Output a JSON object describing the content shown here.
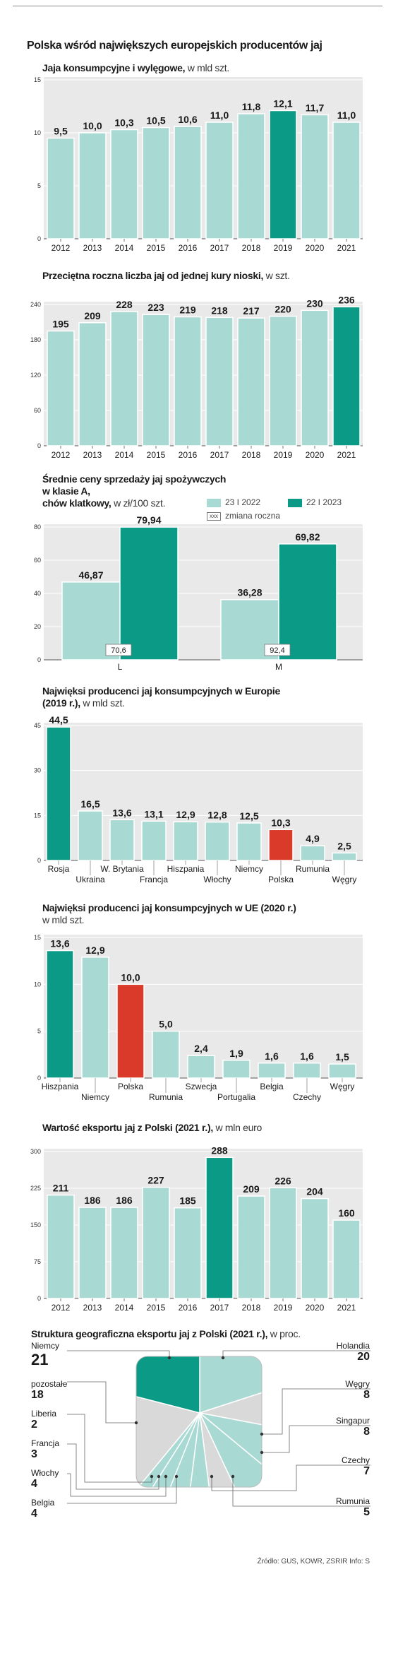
{
  "title": "Polska wśród największych europejskich producentów jaj",
  "colors": {
    "light": "#a8d9d3",
    "dark": "#0a9a86",
    "highlight": "#d93a2a",
    "panel": "#e9e9e9",
    "grey": "#cfcfcf"
  },
  "charts": {
    "c1": {
      "title": "Jaja konsumpcyjne i wylęgowe,",
      "unit": "w mld szt."
    },
    "c2": {
      "title": "Przeciętna roczna liczba jaj od jednej kury nioski,",
      "unit": "w szt."
    },
    "c3": {
      "title_line1": "Średnie ceny sprzedaży jaj spożywczych w klasie A,",
      "title_line2": "chów klatkowy,",
      "unit": "w zł/100 szt.",
      "legend": {
        "a": "23 I 2022",
        "b": "22 I 2023",
        "c_box": "xxx",
        "c": "zmiana roczna"
      }
    },
    "c4": {
      "title_line1": "Najwięksi producenci jaj konsumpcyjnych w Europie",
      "title_line2": "(2019 r.),",
      "unit": "w mld szt."
    },
    "c5": {
      "title": "Najwięksi producenci jaj konsumpcyjnych w UE (2020 r.)",
      "unit": "w mld szt."
    },
    "c6": {
      "title": "Wartość eksportu jaj z Polski (2021 r.),",
      "unit": "w mln euro"
    },
    "c7": {
      "title": "Struktura geograficzna eksportu jaj z Polski (2021 r.),",
      "unit": "w proc."
    }
  },
  "pie_labels": {
    "niemcy": {
      "name": "Niemcy",
      "val": "21"
    },
    "pozostale": {
      "name": "pozostałe",
      "val": "18"
    },
    "liberia": {
      "name": "Liberia",
      "val": "2"
    },
    "francja": {
      "name": "Francja",
      "val": "3"
    },
    "wlochy": {
      "name": "Włochy",
      "val": "4"
    },
    "belgia": {
      "name": "Belgia",
      "val": "4"
    },
    "holandia": {
      "name": "Holandia",
      "val": "20"
    },
    "wegry": {
      "name": "Węgry",
      "val": "8"
    },
    "singapur": {
      "name": "Singapur",
      "val": "8"
    },
    "czechy": {
      "name": "Czechy",
      "val": "7"
    },
    "rumunia": {
      "name": "Rumunia",
      "val": "5"
    }
  },
  "source": "Źródło: GUS, KOWR, ZSRIR   Info: S",
  "chart_data": [
    {
      "type": "bar",
      "id": "c1",
      "title": "Jaja konsumpcyjne i wylęgowe, w mld szt.",
      "categories": [
        "2012",
        "2013",
        "2014",
        "2015",
        "2016",
        "2017",
        "2018",
        "2019",
        "2020",
        "2021"
      ],
      "values": [
        9.5,
        10.0,
        10.3,
        10.5,
        10.6,
        11.0,
        11.8,
        12.1,
        11.7,
        11.0
      ],
      "labels": [
        "9,5",
        "10,0",
        "10,3",
        "10,5",
        "10,6",
        "11,0",
        "11,8",
        "12,1",
        "11,7",
        "11,0"
      ],
      "highlight": [
        7
      ],
      "ylim": [
        0,
        15
      ],
      "yticks": [
        0,
        5,
        10,
        15
      ],
      "ytick_labels": [
        "0",
        "5",
        "10",
        "15"
      ]
    },
    {
      "type": "bar",
      "id": "c2",
      "title": "Przeciętna roczna liczba jaj od jednej kury nioski, w szt.",
      "categories": [
        "2012",
        "2013",
        "2014",
        "2015",
        "2016",
        "2017",
        "2018",
        "2019",
        "2020",
        "2021"
      ],
      "values": [
        195,
        209,
        228,
        223,
        219,
        218,
        217,
        220,
        230,
        236
      ],
      "labels": [
        "195",
        "209",
        "228",
        "223",
        "219",
        "218",
        "217",
        "220",
        "230",
        "236"
      ],
      "highlight": [
        9
      ],
      "ylim": [
        0,
        240
      ],
      "yticks": [
        0,
        60,
        120,
        180,
        240
      ],
      "ytick_labels": [
        "0",
        "60",
        "120",
        "180",
        "240"
      ]
    },
    {
      "type": "bar",
      "id": "c3",
      "title": "Średnie ceny sprzedaży jaj spożywczych w klasie A, chów klatkowy, w zł/100 szt.",
      "categories": [
        "L",
        "M"
      ],
      "series": [
        {
          "name": "23 I 2022",
          "values": [
            46.87,
            36.28
          ],
          "labels": [
            "46,87",
            "36,28"
          ]
        },
        {
          "name": "22 I 2023",
          "values": [
            79.94,
            69.82
          ],
          "labels": [
            "79,94",
            "69,82"
          ]
        }
      ],
      "annotations": [
        "70,6",
        "92,4"
      ],
      "annotation_name": "zmiana roczna",
      "ylim": [
        0,
        80
      ],
      "yticks": [
        0,
        20,
        40,
        60,
        80
      ],
      "ytick_labels": [
        "0",
        "20",
        "40",
        "60",
        "80"
      ]
    },
    {
      "type": "bar",
      "id": "c4",
      "title": "Najwięksi producenci jaj konsumpcyjnych w Europie (2019 r.), w mld szt.",
      "categories": [
        "Rosja",
        "Ukraina",
        "W. Brytania",
        "Francja",
        "Hiszpania",
        "Włochy",
        "Niemcy",
        "Polska",
        "Rumunia",
        "Węgry"
      ],
      "values": [
        44.5,
        16.5,
        13.6,
        13.1,
        12.9,
        12.8,
        12.5,
        10.3,
        4.9,
        2.5
      ],
      "labels": [
        "44,5",
        "16,5",
        "13,6",
        "13,1",
        "12,9",
        "12,8",
        "12,5",
        "10,3",
        "4,9",
        "2,5"
      ],
      "highlight": [
        0
      ],
      "red": [
        7
      ],
      "ylim": [
        0,
        45
      ],
      "yticks": [
        0,
        15,
        30,
        45
      ],
      "ytick_labels": [
        "0",
        "15",
        "30",
        "45"
      ]
    },
    {
      "type": "bar",
      "id": "c5",
      "title": "Najwięksi producenci jaj konsumpcyjnych w UE (2020 r.) w mld szt.",
      "categories": [
        "Hiszpania",
        "Niemcy",
        "Polska",
        "Rumunia",
        "Szwecja",
        "Portugalia",
        "Belgia",
        "Czechy",
        "Węgry"
      ],
      "values": [
        13.6,
        12.9,
        10.0,
        5.0,
        2.4,
        1.9,
        1.6,
        1.6,
        1.5
      ],
      "labels": [
        "13,6",
        "12,9",
        "10,0",
        "5,0",
        "2,4",
        "1,9",
        "1,6",
        "1,6",
        "1,5"
      ],
      "highlight": [
        0
      ],
      "red": [
        2
      ],
      "ylim": [
        0,
        15
      ],
      "yticks": [
        0,
        5,
        10,
        15
      ],
      "ytick_labels": [
        "0",
        "5",
        "10",
        "15"
      ]
    },
    {
      "type": "bar",
      "id": "c6",
      "title": "Wartość eksportu jaj z Polski (2021 r.), w mln euro",
      "categories": [
        "2012",
        "2013",
        "2014",
        "2015",
        "2016",
        "2017",
        "2018",
        "2019",
        "2020",
        "2021"
      ],
      "values": [
        211,
        186,
        186,
        227,
        185,
        288,
        209,
        226,
        204,
        160
      ],
      "labels": [
        "211",
        "186",
        "186",
        "227",
        "185",
        "288",
        "209",
        "226",
        "204",
        "160"
      ],
      "highlight": [
        5
      ],
      "ylim": [
        0,
        300
      ],
      "yticks": [
        0,
        75,
        150,
        225,
        300
      ],
      "ytick_labels": [
        "0",
        "75",
        "150",
        "225",
        "300"
      ]
    },
    {
      "type": "pie",
      "id": "c7",
      "title": "Struktura geograficzna eksportu jaj z Polski (2021 r.), w proc.",
      "categories": [
        "Holandia",
        "Węgry",
        "Singapur",
        "Czechy",
        "Rumunia",
        "Belgia",
        "Włochy",
        "Francja",
        "Liberia",
        "pozostałe",
        "Niemcy"
      ],
      "values": [
        20,
        8,
        8,
        7,
        5,
        4,
        4,
        3,
        2,
        18,
        21
      ]
    }
  ]
}
